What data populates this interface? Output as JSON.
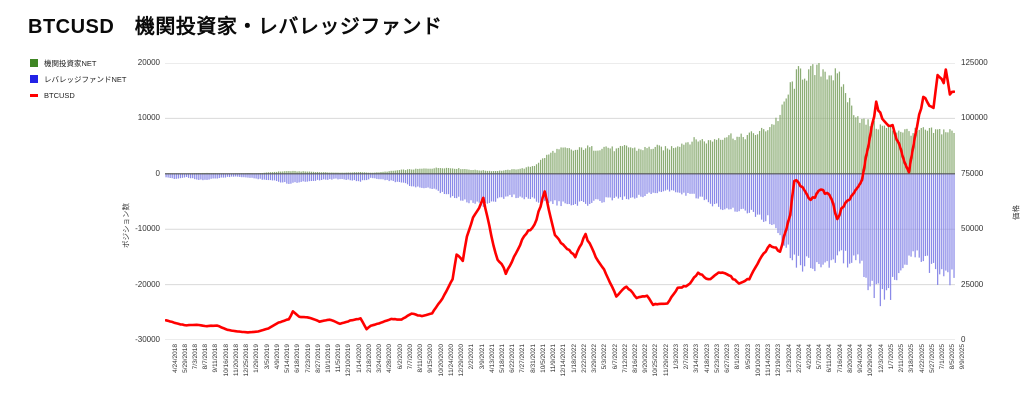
{
  "title": "BTCUSD　機関投資家・レバレッジファンド",
  "legend": [
    {
      "label": "機関投資家NET",
      "color": "#3f8624",
      "marker": "square"
    },
    {
      "label": "レバレッジファンドNET",
      "color": "#2222e6",
      "marker": "square"
    },
    {
      "label": "BTCUSD",
      "color": "#ff0000",
      "marker": "dash"
    }
  ],
  "left_axis": {
    "title": "ポジション数",
    "min": -30000,
    "max": 20000,
    "ticks": [
      "20000",
      "10000",
      "0",
      "-10000",
      "-20000",
      "-30000"
    ]
  },
  "right_axis": {
    "title": "価格",
    "min": 0,
    "max": 125000,
    "ticks": [
      "125000",
      "100000",
      "75000",
      "50000",
      "25000",
      "0"
    ]
  },
  "chart_data": {
    "type": "bar+line",
    "grid": true,
    "weeks_per_tick": 5,
    "x_tick_labels": [
      "4/24/2018",
      "5/29/2018",
      "7/3/2018",
      "8/7/2018",
      "9/11/2018",
      "10/16/2018",
      "11/20/2018",
      "12/25/2018",
      "1/29/2019",
      "3/5/2019",
      "4/9/2019",
      "5/14/2019",
      "6/18/2019",
      "7/23/2019",
      "8/27/2019",
      "10/1/2019",
      "11/5/2019",
      "12/10/2019",
      "1/14/2020",
      "2/18/2020",
      "3/24/2020",
      "4/28/2020",
      "6/2/2020",
      "7/7/2020",
      "8/11/2020",
      "9/15/2020",
      "10/20/2020",
      "11/24/2020",
      "12/29/2020",
      "2/2/2021",
      "3/9/2021",
      "4/13/2021",
      "5/18/2021",
      "6/22/2021",
      "7/27/2021",
      "8/31/2021",
      "10/5/2021",
      "11/9/2021",
      "12/14/2021",
      "1/18/2022",
      "2/22/2022",
      "3/29/2022",
      "5/3/2022",
      "6/7/2022",
      "7/12/2022",
      "8/16/2022",
      "9/20/2022",
      "10/25/2022",
      "11/29/2022",
      "1/3/2023",
      "2/7/2023",
      "3/14/2023",
      "4/18/2023",
      "5/23/2023",
      "6/27/2023",
      "8/1/2023",
      "9/5/2023",
      "10/10/2023",
      "11/14/2023",
      "12/19/2023",
      "1/23/2024",
      "2/27/2024",
      "4/2/2024",
      "5/7/2024",
      "6/11/2024",
      "7/16/2024",
      "8/20/2024",
      "9/24/2024",
      "10/29/2024",
      "12/3/2024",
      "1/7/2025",
      "2/11/2025",
      "3/18/2025",
      "4/22/2025",
      "5/27/2025",
      "7/1/2025",
      "8/5/2025",
      "9/9/2025"
    ],
    "series": [
      {
        "name": "機関投資家NET",
        "type": "bar",
        "axis": "left",
        "color": "#8bac74",
        "values_at_ticks": [
          100,
          80,
          60,
          120,
          150,
          100,
          60,
          80,
          120,
          100,
          250,
          400,
          500,
          450,
          400,
          300,
          250,
          200,
          250,
          300,
          200,
          300,
          500,
          700,
          800,
          900,
          1000,
          1100,
          1000,
          900,
          700,
          600,
          500,
          600,
          800,
          1000,
          1500,
          3000,
          4200,
          4500,
          4200,
          4800,
          4500,
          4900,
          4300,
          5000,
          4400,
          4600,
          4800,
          4500,
          5200,
          5800,
          6200,
          5800,
          6500,
          7000,
          6500,
          7000,
          7500,
          8500,
          10500,
          15500,
          18500,
          18000,
          19000,
          18200,
          16500,
          12000,
          9500,
          8800,
          8500,
          8000,
          7800,
          7500,
          7800,
          7600,
          7800,
          7500
        ]
      },
      {
        "name": "レバレッジファンドNET",
        "type": "bar",
        "axis": "left",
        "color": "#8a8ae8",
        "values_at_ticks": [
          -700,
          -900,
          -600,
          -1000,
          -1100,
          -800,
          -600,
          -500,
          -700,
          -900,
          -1100,
          -1400,
          -1700,
          -1500,
          -1300,
          -1100,
          -1000,
          -900,
          -1100,
          -1400,
          -800,
          -900,
          -1300,
          -1600,
          -2200,
          -2500,
          -2800,
          -3500,
          -4200,
          -4800,
          -5200,
          -5500,
          -4800,
          -4200,
          -4000,
          -4300,
          -4600,
          -5000,
          -5300,
          -5600,
          -5200,
          -5500,
          -5000,
          -4600,
          -4200,
          -4500,
          -4000,
          -3800,
          -3300,
          -3000,
          -3400,
          -3700,
          -4200,
          -5200,
          -5800,
          -6200,
          -6500,
          -7000,
          -7500,
          -8500,
          -10500,
          -14000,
          -16500,
          -15800,
          -16800,
          -16000,
          -15200,
          -15500,
          -16500,
          -21000,
          -22500,
          -20500,
          -16500,
          -13500,
          -15000,
          -17500,
          -19500,
          -18500
        ]
      },
      {
        "name": "BTCUSD",
        "type": "line",
        "axis": "right",
        "color": "#ff0000",
        "values_at_ticks": [
          8900,
          7500,
          6600,
          6900,
          6300,
          6500,
          4600,
          3800,
          3450,
          3850,
          5200,
          7900,
          9300,
          10500,
          10100,
          8300,
          9300,
          7250,
          8800,
          9650,
          6500,
          7750,
          9500,
          9250,
          11900,
          10800,
          11900,
          18700,
          27300,
          35500,
          54900,
          63500,
          43000,
          32500,
          37300,
          47100,
          51500,
          67500,
          46700,
          42400,
          37700,
          47400,
          37700,
          29900,
          19900,
          24100,
          19000,
          20100,
          16200,
          16700,
          23300,
          24700,
          30400,
          27200,
          30700,
          29200,
          25800,
          27400,
          36500,
          42700,
          40100,
          57000,
          69700,
          63200,
          67300,
          64800,
          59500,
          64300,
          72700,
          95900,
          100000,
          95800,
          82700,
          87500,
          109000,
          105700,
          114200,
          112800
        ],
        "extra_points_weeks": [
          [
            62,
            12800
          ],
          [
            98,
            4900
          ],
          [
            142,
            38500
          ],
          [
            147,
            46500
          ],
          [
            162,
            36500
          ],
          [
            166,
            29800
          ],
          [
            238,
            15900
          ],
          [
            307,
            71800
          ],
          [
            328,
            54500
          ],
          [
            347,
            106500
          ],
          [
            363,
            76500
          ],
          [
            377,
            119500
          ],
          [
            381,
            120500
          ],
          [
            383,
            111500
          ]
        ]
      }
    ]
  }
}
